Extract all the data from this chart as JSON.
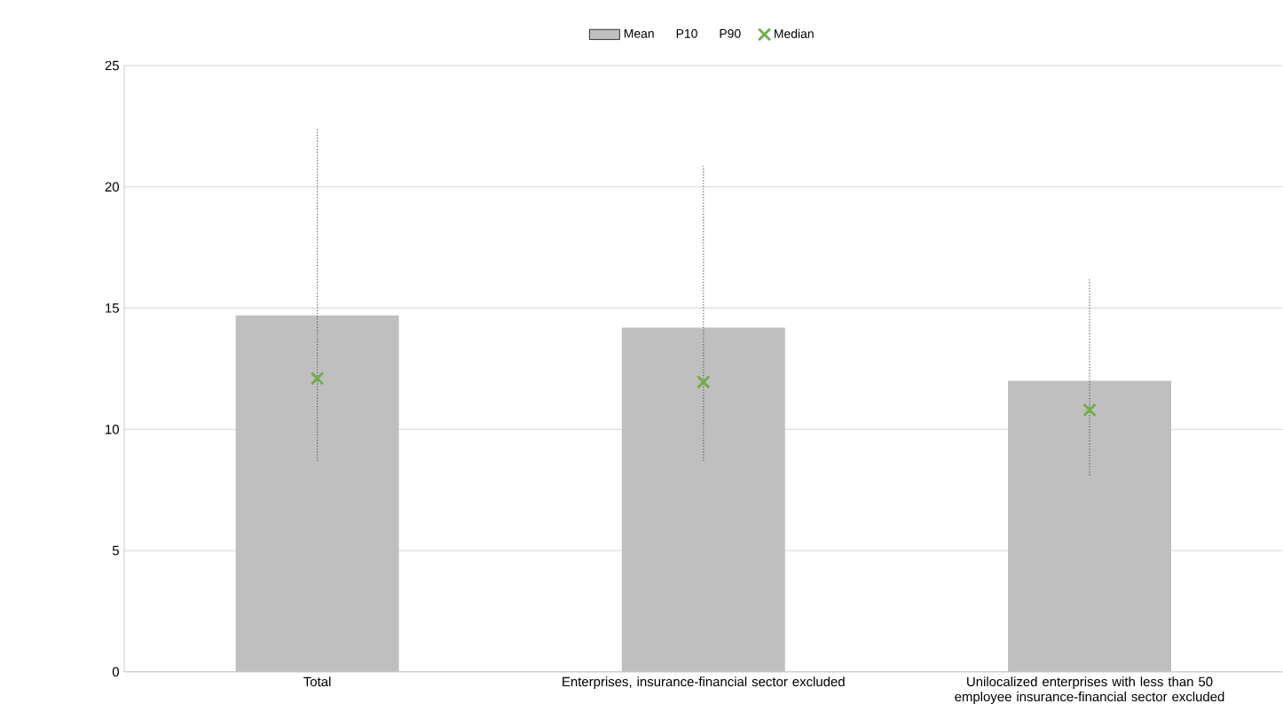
{
  "chart_data": {
    "type": "bar",
    "categories": [
      "Total",
      "Enterprises, insurance-financial sector excluded",
      "Unilocalized enterprises with less than 50 employee insurance-financial sector excluded"
    ],
    "series": [
      {
        "name": "Mean",
        "color": "#bfbfbf",
        "values": [
          14.7,
          14.2,
          12.0
        ]
      },
      {
        "name": "P10",
        "type": "line",
        "values": [
          null,
          null,
          null
        ]
      },
      {
        "name": "P90",
        "type": "line",
        "values": [
          null,
          null,
          null
        ]
      },
      {
        "name": "Median",
        "type": "scatter",
        "marker": "cross",
        "color": "#70ad47",
        "values": [
          12.1,
          11.95,
          10.8
        ],
        "errors": [
          [
            8.7,
            22.4
          ],
          [
            8.7,
            20.9
          ],
          [
            8.1,
            16.2
          ]
        ]
      }
    ],
    "ylim": [
      0,
      25
    ],
    "yticks": [
      0,
      5,
      10,
      15,
      20,
      25
    ],
    "grid": "y",
    "legend": "top"
  }
}
